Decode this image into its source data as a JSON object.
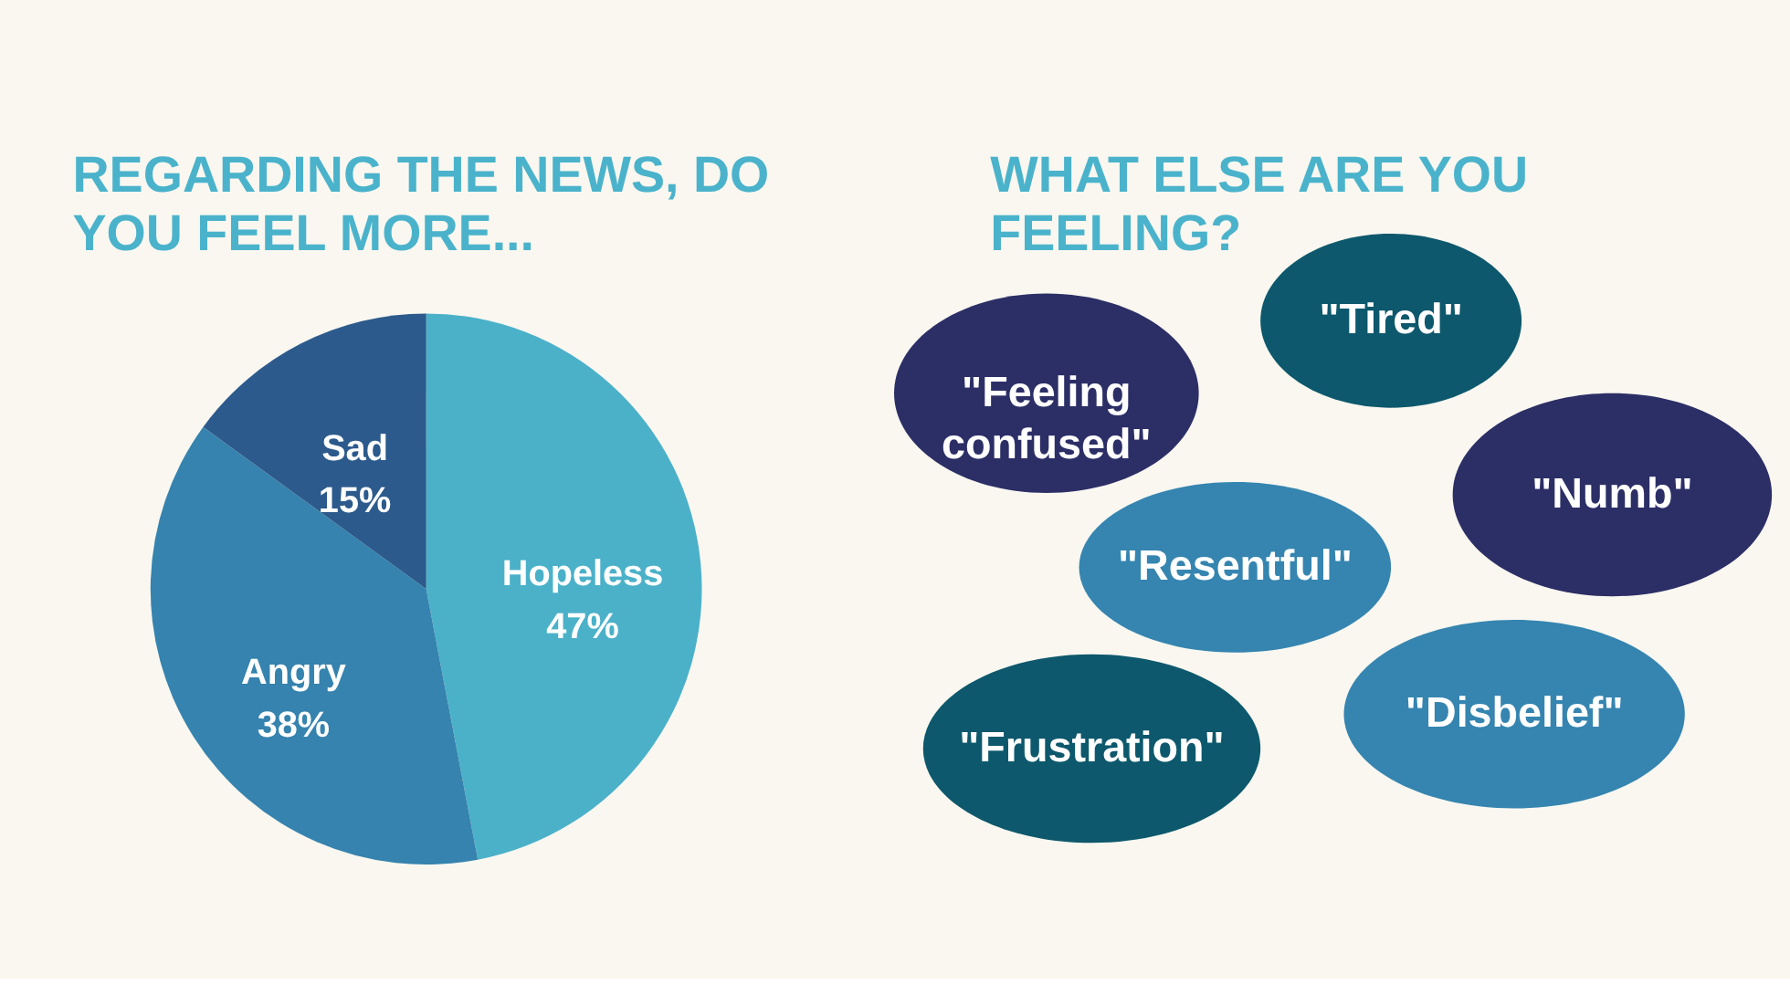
{
  "chart_data": [
    {
      "type": "pie",
      "title": "REGARDING THE NEWS, DO YOU FEEL MORE...",
      "categories": [
        "Hopeless",
        "Angry",
        "Sad"
      ],
      "values": [
        47,
        38,
        15
      ],
      "value_labels": [
        "47%",
        "38%",
        "15%"
      ],
      "colors": [
        "#4bb1c9",
        "#3583ae",
        "#2c5a8c"
      ]
    },
    {
      "type": "other",
      "title": "WHAT ELSE ARE YOU FEELING?",
      "categories": [
        "\"Tired\"",
        "\"Feeling confused\"",
        "\"Numb\"",
        "\"Resentful\"",
        "\"Disbelief\"",
        "\"Frustration\""
      ],
      "colors": [
        "#0d586c",
        "#2c2f66",
        "#2c2f66",
        "#3585b0",
        "#3585b0",
        "#0d586c"
      ]
    }
  ]
}
